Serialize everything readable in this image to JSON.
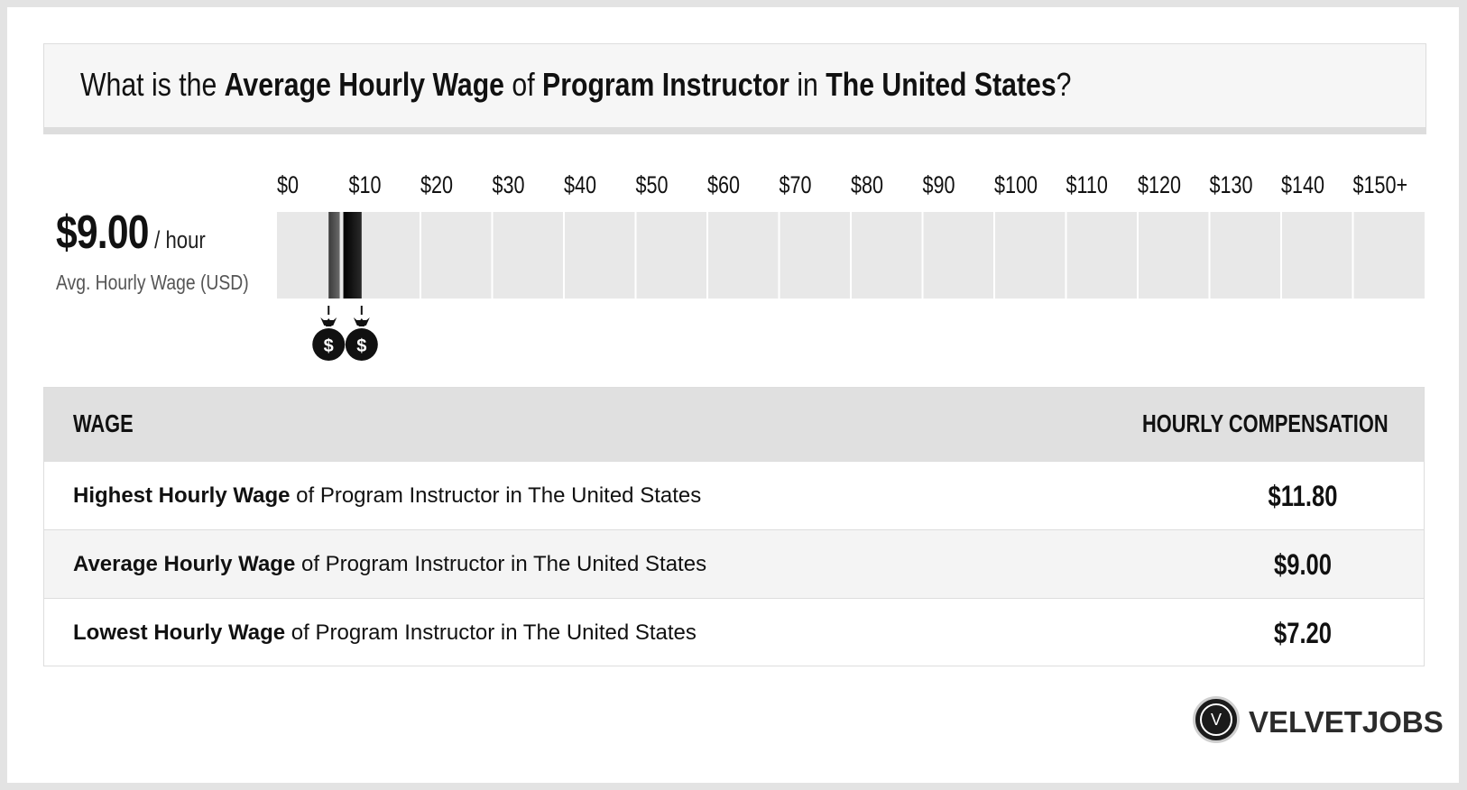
{
  "title": {
    "prefix": "What is the ",
    "metric": "Average Hourly Wage",
    "of": " of ",
    "job": "Program Instructor",
    "in": " in ",
    "location": "The United States",
    "suffix": "?"
  },
  "summary": {
    "value": "$9.00",
    "unit": "/ hour",
    "label": "Avg. Hourly Wage (USD)"
  },
  "chart_data": {
    "type": "bar",
    "x_tick_labels": [
      "$0",
      "$10",
      "$20",
      "$30",
      "$40",
      "$50",
      "$60",
      "$70",
      "$80",
      "$90",
      "$100",
      "$110",
      "$120",
      "$130",
      "$140",
      "$150+"
    ],
    "xlim": [
      0,
      150
    ],
    "range": {
      "low": 7.2,
      "average": 9.0,
      "high": 11.8
    },
    "markers": [
      {
        "value": 7.2,
        "icon": "money-bag-icon"
      },
      {
        "value": 11.8,
        "icon": "money-bag-icon"
      }
    ],
    "colors": {
      "track": "#e8e8e8",
      "bar_low": "#555555",
      "bar_high": "#111111"
    }
  },
  "table": {
    "headers": {
      "wage": "WAGE",
      "comp": "HOURLY COMPENSATION"
    },
    "rows": [
      {
        "bold": "Highest Hourly Wage",
        "rest": " of Program Instructor in The United States",
        "value": "$11.80"
      },
      {
        "bold": "Average Hourly Wage",
        "rest": " of Program Instructor in The United States",
        "value": "$9.00"
      },
      {
        "bold": "Lowest Hourly Wage",
        "rest": " of Program Instructor in The United States",
        "value": "$7.20"
      }
    ]
  },
  "logo": {
    "letter": "V",
    "text": "VELVETJOBS"
  }
}
